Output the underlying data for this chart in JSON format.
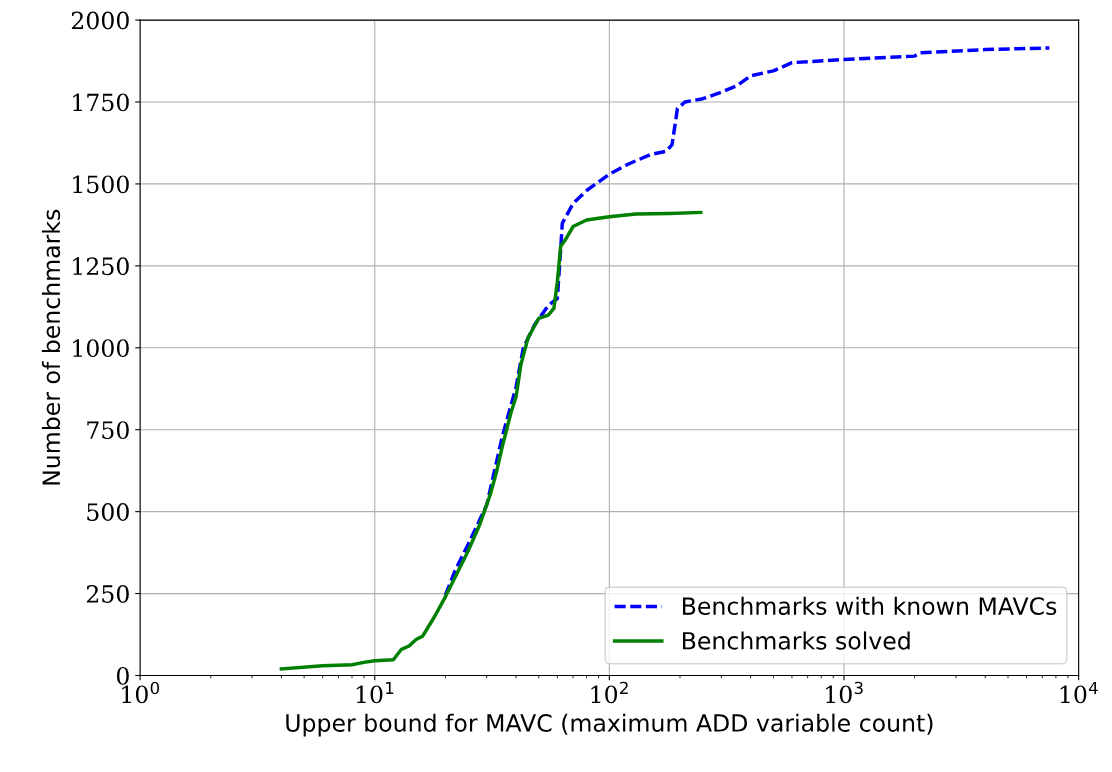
{
  "chart_data": {
    "type": "line",
    "xlabel": "Upper bound for MAVC (maximum ADD variable count)",
    "ylabel": "Number of benchmarks",
    "log": "x",
    "xlim": [
      1,
      10000
    ],
    "xticks": [
      {
        "value": 1,
        "label": "10$^{0}$"
      },
      {
        "value": 10,
        "label": "10$^{1}$"
      },
      {
        "value": 100,
        "label": "10$^{2}$"
      },
      {
        "value": 1000,
        "label": "10$^{3}$"
      },
      {
        "value": 10000,
        "label": "10$^{4}$"
      }
    ],
    "ylim": [
      0,
      2000
    ],
    "yticks": [
      0,
      250,
      500,
      750,
      1000,
      1250,
      1500,
      1750,
      2000
    ],
    "grid": true,
    "legend": "bottom right",
    "series": [
      {
        "name": "Benchmarks with known MAVCs",
        "color": "#0000ff",
        "line_style": "dashed",
        "x": [
          20,
          22,
          25,
          30,
          35,
          40,
          43,
          48,
          55,
          60,
          62,
          63,
          70,
          80,
          100,
          120,
          150,
          175,
          185,
          195,
          210,
          250,
          300,
          350,
          400,
          500,
          600,
          1000,
          2000,
          2100,
          4000,
          7500
        ],
        "values": [
          245,
          320,
          400,
          520,
          730,
          880,
          1000,
          1070,
          1130,
          1150,
          1300,
          1380,
          1440,
          1480,
          1530,
          1560,
          1590,
          1600,
          1620,
          1730,
          1750,
          1760,
          1780,
          1800,
          1830,
          1845,
          1870,
          1880,
          1890,
          1900,
          1910,
          1915
        ]
      },
      {
        "name": "Benchmarks solved",
        "color": "#008000",
        "line_style": "solid",
        "x": [
          4,
          6,
          8,
          9,
          10,
          12,
          13,
          14,
          15,
          16,
          18,
          20,
          22,
          25,
          28,
          31,
          33,
          35,
          38,
          40,
          42,
          45,
          50,
          55,
          58,
          60,
          62,
          65,
          70,
          80,
          90,
          100,
          130,
          180,
          245
        ],
        "values": [
          20,
          30,
          33,
          40,
          45,
          48,
          80,
          90,
          110,
          120,
          180,
          240,
          300,
          380,
          460,
          550,
          620,
          700,
          800,
          850,
          950,
          1030,
          1090,
          1100,
          1120,
          1200,
          1310,
          1330,
          1370,
          1390,
          1395,
          1400,
          1408,
          1410,
          1413
        ]
      }
    ]
  }
}
